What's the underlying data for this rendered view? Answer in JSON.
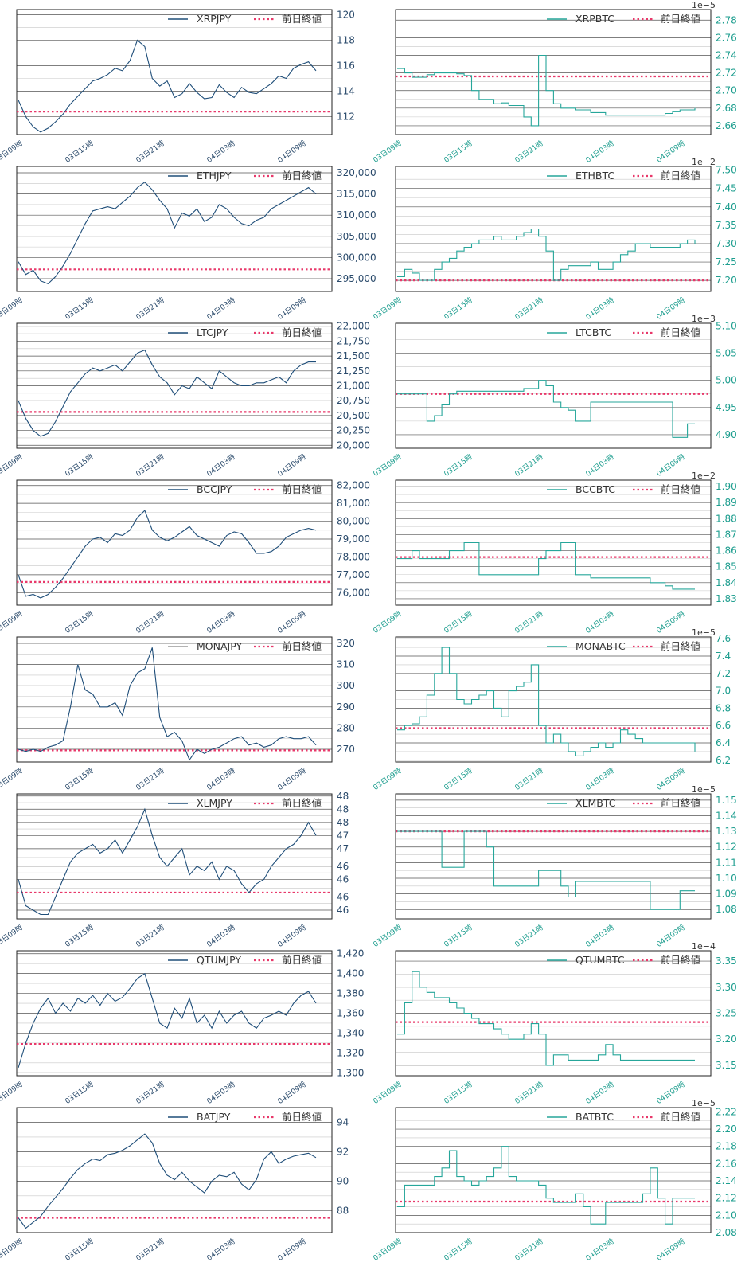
{
  "colors": {
    "jpy_line": "#1f4e79",
    "mona_legend": "#9a9a9a",
    "btc_line": "#26a69a",
    "jpy_tick": "#2a4a6b",
    "btc_tick": "#1e9e8f",
    "prev_close": "#e8386a",
    "grid_major": "#555555",
    "grid_minor": "#c8c8c8",
    "frame": "#222222"
  },
  "legend_prev_close": "前日終値",
  "x_tick_labels": [
    "03日09時",
    "03日15時",
    "03日21時",
    "04日03時",
    "04日09時"
  ],
  "chart_data": [
    {
      "type": "line",
      "series": [
        {
          "name": "XRPJPY",
          "values": [
            113.3,
            112.0,
            111.2,
            110.8,
            111.1,
            111.6,
            112.2,
            113.0,
            113.6,
            114.2,
            114.8,
            115.0,
            115.3,
            115.8,
            115.6,
            116.4,
            118.0,
            117.5,
            115.0,
            114.4,
            114.8,
            113.5,
            113.8,
            114.6,
            113.9,
            113.4,
            113.5,
            114.5,
            113.9,
            113.5,
            114.3,
            113.9,
            113.8,
            114.2,
            114.6,
            115.2,
            115.0,
            115.8,
            116.1,
            116.3,
            115.6
          ]
        }
      ],
      "yticks": [
        112,
        114,
        116,
        118,
        120
      ],
      "ylim": [
        110.6,
        120.4
      ],
      "prev_close": 112.4,
      "offset_label": "",
      "step": false
    },
    {
      "type": "line",
      "series": [
        {
          "name": "XRPBTC",
          "values": [
            2.725,
            2.72,
            2.715,
            2.715,
            2.718,
            2.72,
            2.72,
            2.72,
            2.719,
            2.717,
            2.7,
            2.69,
            2.69,
            2.685,
            2.686,
            2.683,
            2.683,
            2.67,
            2.66,
            2.74,
            2.7,
            2.685,
            2.68,
            2.68,
            2.678,
            2.678,
            2.675,
            2.675,
            2.672,
            2.672,
            2.672,
            2.672,
            2.672,
            2.672,
            2.672,
            2.672,
            2.674,
            2.676,
            2.678,
            2.678,
            2.68
          ]
        }
      ],
      "yticks": [
        2.66,
        2.68,
        2.7,
        2.72,
        2.74,
        2.76,
        2.78
      ],
      "ylim": [
        2.65,
        2.792
      ],
      "prev_close": 2.716,
      "offset_label": "1e−5",
      "step": true
    },
    {
      "type": "line",
      "series": [
        {
          "name": "ETHJPY",
          "values": [
            299000,
            296000,
            297000,
            294500,
            293800,
            295500,
            298000,
            301000,
            304500,
            308000,
            311000,
            311500,
            312000,
            311500,
            313000,
            314500,
            316500,
            317800,
            316000,
            313500,
            311500,
            307000,
            310500,
            309800,
            311500,
            308500,
            309500,
            312500,
            311500,
            309500,
            308000,
            307500,
            308800,
            309500,
            311500,
            312500,
            313500,
            314500,
            315500,
            316500,
            315000
          ]
        }
      ],
      "yticks": [
        295000,
        300000,
        305000,
        310000,
        315000,
        320000
      ],
      "ylim": [
        292000,
        321500
      ],
      "prev_close": 297200,
      "offset_label": "",
      "step": false
    },
    {
      "type": "line",
      "series": [
        {
          "name": "ETHBTC",
          "values": [
            7.21,
            7.23,
            7.22,
            7.2,
            7.2,
            7.23,
            7.25,
            7.26,
            7.28,
            7.29,
            7.3,
            7.31,
            7.31,
            7.32,
            7.31,
            7.31,
            7.32,
            7.33,
            7.34,
            7.32,
            7.28,
            7.2,
            7.23,
            7.24,
            7.24,
            7.24,
            7.25,
            7.23,
            7.23,
            7.25,
            7.27,
            7.28,
            7.3,
            7.3,
            7.29,
            7.29,
            7.29,
            7.29,
            7.3,
            7.31,
            7.3
          ]
        }
      ],
      "yticks": [
        7.2,
        7.25,
        7.3,
        7.35,
        7.4,
        7.45,
        7.5
      ],
      "ylim": [
        7.17,
        7.51
      ],
      "prev_close": 7.2,
      "offset_label": "1e−2",
      "step": true
    },
    {
      "type": "line",
      "series": [
        {
          "name": "LTCJPY",
          "values": [
            20750,
            20450,
            20250,
            20150,
            20200,
            20400,
            20650,
            20900,
            21050,
            21200,
            21300,
            21250,
            21300,
            21350,
            21250,
            21400,
            21550,
            21600,
            21350,
            21150,
            21050,
            20850,
            21000,
            20950,
            21150,
            21050,
            20950,
            21250,
            21150,
            21050,
            21000,
            21000,
            21050,
            21050,
            21100,
            21150,
            21050,
            21250,
            21350,
            21400,
            21400
          ]
        }
      ],
      "yticks": [
        20000,
        20250,
        20500,
        20750,
        21000,
        21250,
        21500,
        21750,
        22000
      ],
      "ylim": [
        19950,
        22050
      ],
      "prev_close": 20560,
      "offset_label": "",
      "step": false
    },
    {
      "type": "line",
      "series": [
        {
          "name": "LTCBTC",
          "values": [
            4.975,
            4.975,
            4.975,
            4.975,
            4.925,
            4.935,
            4.955,
            4.975,
            4.98,
            4.98,
            4.98,
            4.98,
            4.98,
            4.98,
            4.98,
            4.98,
            4.98,
            4.985,
            4.985,
            5.0,
            4.99,
            4.96,
            4.95,
            4.945,
            4.925,
            4.925,
            4.96,
            4.96,
            4.96,
            4.96,
            4.96,
            4.96,
            4.96,
            4.96,
            4.96,
            4.96,
            4.96,
            4.895,
            4.895,
            4.92,
            4.92
          ]
        }
      ],
      "yticks": [
        4.9,
        4.95,
        5.0,
        5.05,
        5.1
      ],
      "ylim": [
        4.875,
        5.105
      ],
      "prev_close": 4.975,
      "offset_label": "1e−3",
      "step": true
    },
    {
      "type": "line",
      "series": [
        {
          "name": "BCCJPY",
          "values": [
            77000,
            75800,
            75900,
            75700,
            75900,
            76300,
            76800,
            77400,
            78000,
            78600,
            79000,
            79100,
            78800,
            79300,
            79200,
            79500,
            80200,
            80600,
            79500,
            79100,
            78900,
            79100,
            79400,
            79700,
            79200,
            79000,
            78800,
            78600,
            79200,
            79400,
            79300,
            78800,
            78200,
            78200,
            78300,
            78600,
            79100,
            79300,
            79500,
            79600,
            79500
          ]
        }
      ],
      "yticks": [
        76000,
        77000,
        78000,
        79000,
        80000,
        81000,
        82000
      ],
      "ylim": [
        75300,
        82300
      ],
      "prev_close": 76600,
      "offset_label": "",
      "step": false
    },
    {
      "type": "line",
      "series": [
        {
          "name": "BCCBTC",
          "values": [
            1.855,
            1.855,
            1.86,
            1.855,
            1.855,
            1.855,
            1.855,
            1.86,
            1.86,
            1.865,
            1.865,
            1.845,
            1.845,
            1.845,
            1.845,
            1.845,
            1.845,
            1.845,
            1.845,
            1.855,
            1.86,
            1.86,
            1.865,
            1.865,
            1.845,
            1.845,
            1.843,
            1.843,
            1.843,
            1.843,
            1.843,
            1.843,
            1.843,
            1.843,
            1.84,
            1.84,
            1.838,
            1.836,
            1.836,
            1.836,
            1.836
          ]
        }
      ],
      "yticks": [
        1.83,
        1.84,
        1.85,
        1.86,
        1.87,
        1.88,
        1.89,
        1.9
      ],
      "ylim": [
        1.826,
        1.904
      ],
      "prev_close": 1.856,
      "offset_label": "1e−2",
      "step": true
    },
    {
      "type": "line",
      "series": [
        {
          "name": "MONAJPY",
          "values": [
            270,
            269,
            270,
            269,
            271,
            272,
            274,
            290,
            310,
            298,
            296,
            290,
            290,
            292,
            286,
            300,
            306,
            308,
            318,
            285,
            276,
            278,
            274,
            265,
            270,
            268,
            270,
            271,
            273,
            275,
            276,
            272,
            273,
            271,
            272,
            275,
            276,
            275,
            275,
            276,
            272
          ]
        }
      ],
      "yticks": [
        270,
        280,
        290,
        300,
        310,
        320
      ],
      "ylim": [
        264,
        323
      ],
      "prev_close": 269.5,
      "offset_label": "",
      "step": false
    },
    {
      "type": "line",
      "series": [
        {
          "name": "MONABTC",
          "values": [
            6.55,
            6.6,
            6.62,
            6.7,
            6.95,
            7.2,
            7.5,
            7.2,
            6.9,
            6.85,
            6.9,
            6.95,
            7.0,
            6.8,
            6.7,
            7.0,
            7.05,
            7.1,
            7.3,
            6.6,
            6.4,
            6.5,
            6.4,
            6.3,
            6.25,
            6.3,
            6.35,
            6.4,
            6.35,
            6.4,
            6.55,
            6.5,
            6.45,
            6.4,
            6.4,
            6.4,
            6.4,
            6.4,
            6.4,
            6.4,
            6.3
          ]
        }
      ],
      "yticks": [
        6.2,
        6.4,
        6.6,
        6.8,
        7.0,
        7.2,
        7.4,
        7.6
      ],
      "ylim": [
        6.18,
        7.62
      ],
      "prev_close": 6.57,
      "offset_label": "1e−5",
      "step": true
    },
    {
      "type": "line",
      "series": [
        {
          "name": "XLMJPY",
          "values": [
            46.3,
            45.7,
            45.6,
            45.5,
            45.5,
            45.9,
            46.3,
            46.7,
            46.9,
            47.0,
            47.1,
            46.9,
            47.0,
            47.2,
            46.9,
            47.2,
            47.5,
            47.9,
            47.3,
            46.8,
            46.6,
            46.8,
            47.0,
            46.4,
            46.6,
            46.5,
            46.7,
            46.3,
            46.6,
            46.5,
            46.2,
            46.0,
            46.2,
            46.3,
            46.6,
            46.8,
            47.0,
            47.1,
            47.3,
            47.6,
            47.3
          ]
        }
      ],
      "yticks": [
        45.6,
        45.9,
        46.3,
        46.6,
        47.0,
        47.3,
        47.6,
        47.9,
        48.2
      ],
      "yticklabels": [
        "46",
        "46",
        "46",
        "46",
        "47",
        "47",
        "48",
        "48",
        "48"
      ],
      "ylim": [
        45.4,
        48.25
      ],
      "prev_close": 46.0,
      "offset_label": "",
      "step": false
    },
    {
      "type": "line",
      "series": [
        {
          "name": "XLMBTC",
          "values": [
            1.13,
            1.13,
            1.13,
            1.13,
            1.13,
            1.13,
            1.107,
            1.107,
            1.107,
            1.13,
            1.13,
            1.13,
            1.12,
            1.095,
            1.095,
            1.095,
            1.095,
            1.095,
            1.095,
            1.105,
            1.105,
            1.105,
            1.095,
            1.088,
            1.098,
            1.098,
            1.098,
            1.098,
            1.098,
            1.098,
            1.098,
            1.098,
            1.098,
            1.098,
            1.08,
            1.08,
            1.08,
            1.08,
            1.092,
            1.092,
            1.092
          ]
        }
      ],
      "yticks": [
        1.08,
        1.09,
        1.1,
        1.11,
        1.12,
        1.13,
        1.14,
        1.15
      ],
      "ylim": [
        1.074,
        1.154
      ],
      "prev_close": 1.13,
      "offset_label": "1e−5",
      "step": true
    },
    {
      "type": "line",
      "series": [
        {
          "name": "QTUMJPY",
          "values": [
            1305,
            1330,
            1350,
            1365,
            1375,
            1360,
            1370,
            1362,
            1375,
            1370,
            1378,
            1368,
            1380,
            1372,
            1376,
            1385,
            1395,
            1400,
            1375,
            1350,
            1345,
            1365,
            1355,
            1375,
            1350,
            1358,
            1345,
            1362,
            1350,
            1358,
            1362,
            1350,
            1345,
            1355,
            1358,
            1362,
            1358,
            1370,
            1378,
            1382,
            1370
          ]
        }
      ],
      "yticks": [
        1300,
        1320,
        1340,
        1360,
        1380,
        1400,
        1420
      ],
      "ylim": [
        1297,
        1423
      ],
      "prev_close": 1329,
      "offset_label": "",
      "step": false
    },
    {
      "type": "line",
      "series": [
        {
          "name": "QTUMBTC",
          "values": [
            3.21,
            3.27,
            3.33,
            3.3,
            3.29,
            3.28,
            3.28,
            3.27,
            3.26,
            3.25,
            3.24,
            3.23,
            3.23,
            3.22,
            3.21,
            3.2,
            3.2,
            3.21,
            3.23,
            3.21,
            3.15,
            3.17,
            3.17,
            3.16,
            3.16,
            3.16,
            3.16,
            3.17,
            3.19,
            3.17,
            3.16,
            3.16,
            3.16,
            3.16,
            3.16,
            3.16,
            3.16,
            3.16,
            3.16,
            3.16,
            3.16
          ]
        }
      ],
      "yticks": [
        3.15,
        3.2,
        3.25,
        3.3,
        3.35
      ],
      "ylim": [
        3.13,
        3.37
      ],
      "prev_close": 3.233,
      "offset_label": "1e−4",
      "step": true
    },
    {
      "type": "line",
      "series": [
        {
          "name": "BATJPY",
          "values": [
            87.5,
            86.8,
            87.2,
            87.6,
            88.3,
            88.9,
            89.5,
            90.2,
            90.8,
            91.2,
            91.5,
            91.4,
            91.8,
            91.9,
            92.1,
            92.4,
            92.8,
            93.2,
            92.6,
            91.2,
            90.4,
            90.1,
            90.6,
            90.0,
            89.6,
            89.2,
            90.0,
            90.4,
            90.3,
            90.6,
            89.8,
            89.4,
            90.1,
            91.5,
            92.0,
            91.2,
            91.5,
            91.7,
            91.8,
            91.9,
            91.6
          ]
        }
      ],
      "yticks": [
        88,
        90,
        92,
        94
      ],
      "ylim": [
        86.5,
        95.0
      ],
      "prev_close": 87.5,
      "offset_label": "",
      "step": false
    },
    {
      "type": "line",
      "series": [
        {
          "name": "BATBTC",
          "values": [
            2.11,
            2.135,
            2.135,
            2.135,
            2.135,
            2.145,
            2.155,
            2.175,
            2.145,
            2.14,
            2.135,
            2.14,
            2.145,
            2.155,
            2.18,
            2.145,
            2.14,
            2.14,
            2.14,
            2.135,
            2.12,
            2.115,
            2.115,
            2.115,
            2.125,
            2.11,
            2.09,
            2.09,
            2.115,
            2.115,
            2.115,
            2.115,
            2.115,
            2.125,
            2.155,
            2.12,
            2.09,
            2.12,
            2.12,
            2.12,
            2.12
          ]
        }
      ],
      "yticks": [
        2.08,
        2.1,
        2.12,
        2.14,
        2.16,
        2.18,
        2.2,
        2.22
      ],
      "ylim": [
        2.08,
        2.225
      ],
      "prev_close": 2.116,
      "offset_label": "1e−5",
      "step": true
    }
  ]
}
